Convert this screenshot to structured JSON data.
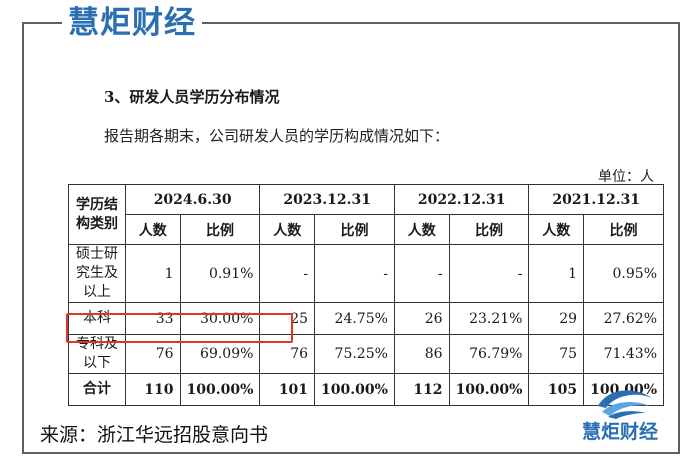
{
  "brand": {
    "name": "慧炬财经"
  },
  "section_title": "3、研发人员学历分布情况",
  "intro": "报告期各期末，公司研发人员的学历构成情况如下：",
  "unit": "单位：人",
  "table": {
    "corner_header": "学历结构类别",
    "periods": [
      "2024.6.30",
      "2023.12.31",
      "2022.12.31",
      "2021.12.31"
    ],
    "sub_headers": {
      "count": "人数",
      "ratio": "比例"
    },
    "rows": [
      {
        "category": "硕士研究生及以上",
        "cells": [
          [
            "1",
            "0.91%"
          ],
          [
            "-",
            "-"
          ],
          [
            "-",
            "-"
          ],
          [
            "1",
            "0.95%"
          ]
        ]
      },
      {
        "category": "本科",
        "cells": [
          [
            "33",
            "30.00%"
          ],
          [
            "25",
            "24.75%"
          ],
          [
            "26",
            "23.21%"
          ],
          [
            "29",
            "27.62%"
          ]
        ]
      },
      {
        "category": "专科及以下",
        "cells": [
          [
            "76",
            "69.09%"
          ],
          [
            "76",
            "75.25%"
          ],
          [
            "86",
            "76.79%"
          ],
          [
            "75",
            "71.43%"
          ]
        ]
      },
      {
        "category": "合计",
        "cells": [
          [
            "110",
            "100.00%"
          ],
          [
            "101",
            "100.00%"
          ],
          [
            "112",
            "100.00%"
          ],
          [
            "105",
            "100.00%"
          ]
        ]
      }
    ]
  },
  "source": "来源：浙江华远招股意向书",
  "colors": {
    "brand": "#2b6fb3",
    "highlight": "#e0352b",
    "frame": "#5b5f66"
  },
  "icons": {
    "logo": "swirl-logo-icon"
  }
}
